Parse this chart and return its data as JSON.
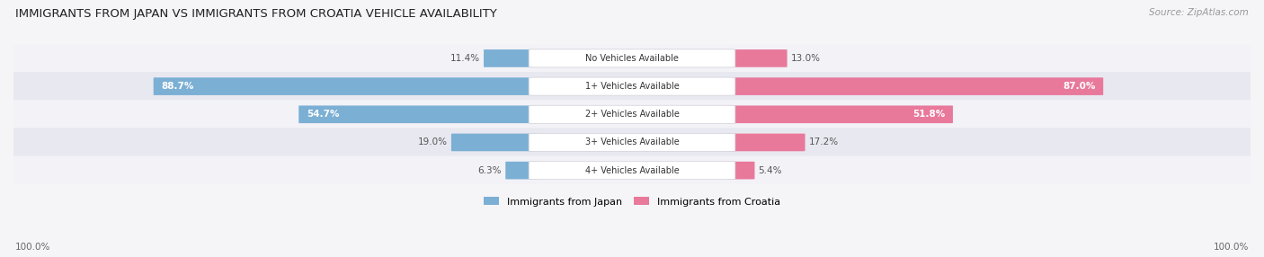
{
  "title": "IMMIGRANTS FROM JAPAN VS IMMIGRANTS FROM CROATIA VEHICLE AVAILABILITY",
  "source": "Source: ZipAtlas.com",
  "categories": [
    "No Vehicles Available",
    "1+ Vehicles Available",
    "2+ Vehicles Available",
    "3+ Vehicles Available",
    "4+ Vehicles Available"
  ],
  "japan_values": [
    11.4,
    88.7,
    54.7,
    19.0,
    6.3
  ],
  "croatia_values": [
    13.0,
    87.0,
    51.8,
    17.2,
    5.4
  ],
  "japan_color": "#7bafd4",
  "croatia_color": "#e8799b",
  "japan_label": "Immigrants from Japan",
  "croatia_label": "Immigrants from Croatia",
  "row_bg_color_even": "#f2f2f7",
  "row_bg_color_odd": "#e8e8f0",
  "label_bg_color": "#ffffff",
  "max_val": 100.0,
  "bar_height": 0.62,
  "figsize": [
    14.06,
    2.86
  ],
  "dpi": 100
}
